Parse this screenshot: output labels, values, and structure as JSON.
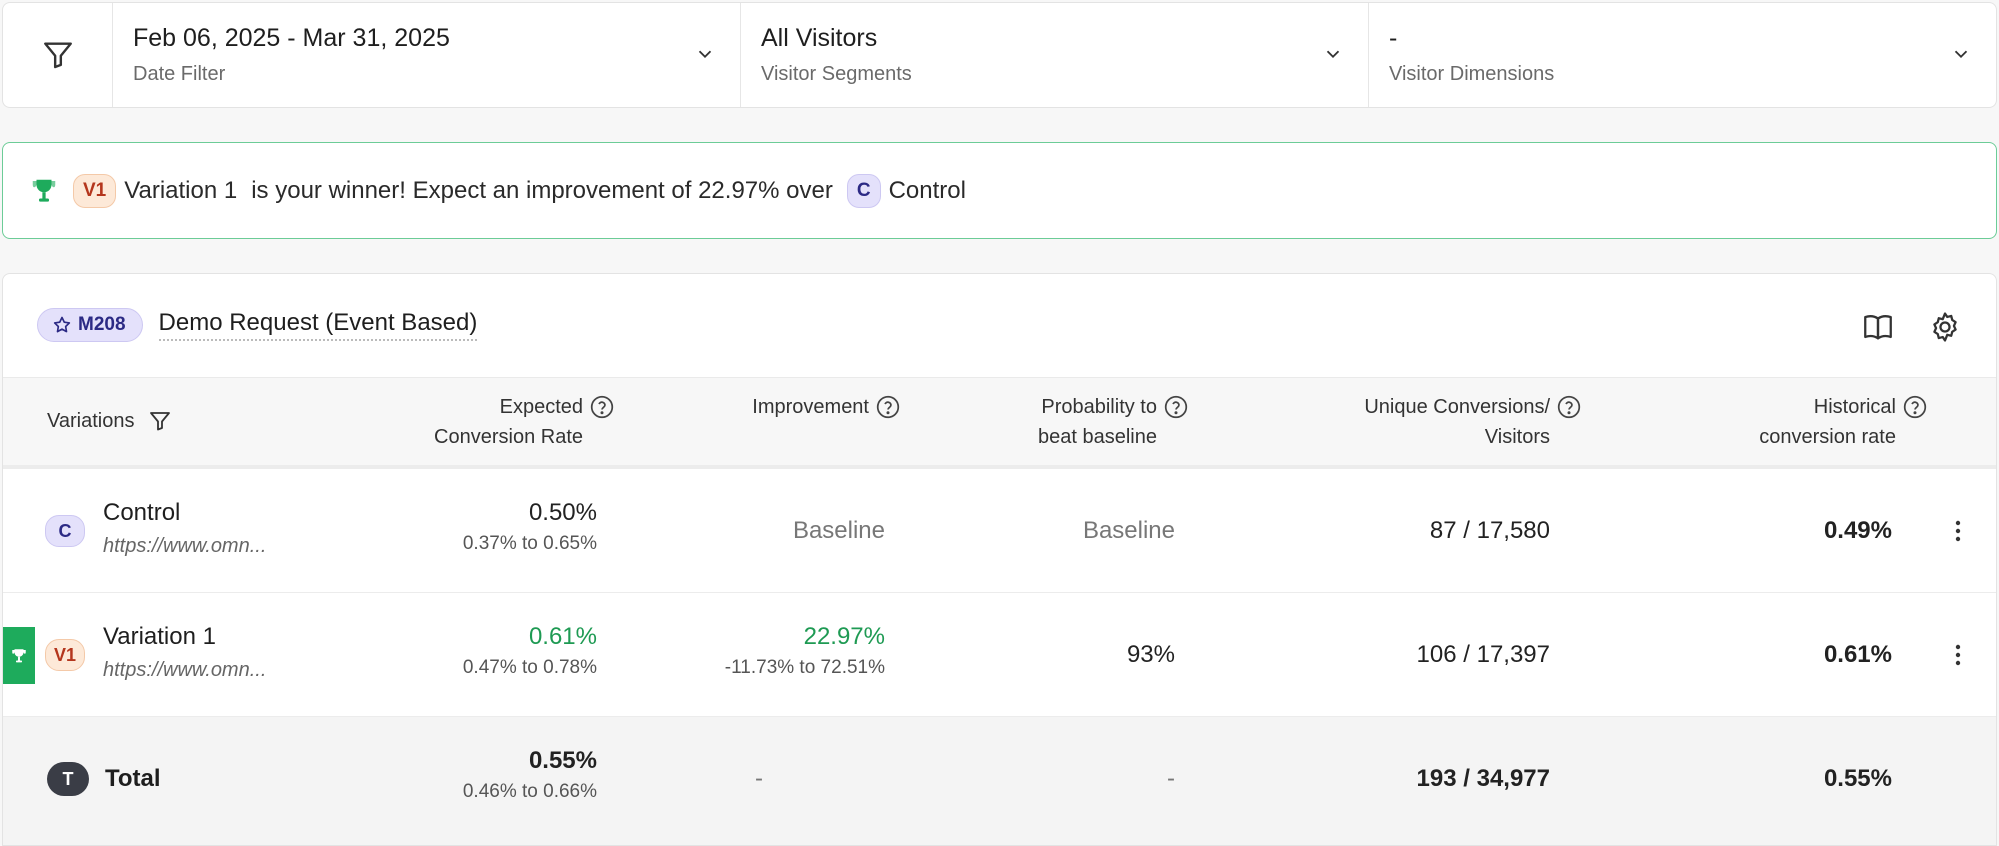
{
  "filters": [
    {
      "value": "Feb 06, 2025 - Mar 31, 2025",
      "label": "Date Filter"
    },
    {
      "value": "All Visitors",
      "label": "Visitor Segments"
    },
    {
      "value": "-",
      "label": "Visitor Dimensions"
    }
  ],
  "banner": {
    "winner_chip": "V1",
    "winner_name": "Variation 1",
    "message": "is your winner! Expect an improvement of 22.97% over",
    "control_chip": "C",
    "control_name": "Control"
  },
  "metric": {
    "id": "M208",
    "name": "Demo Request (Event Based)"
  },
  "columns": {
    "variations": "Variations",
    "expected_1": "Expected",
    "expected_2": "Conversion Rate",
    "improvement": "Improvement",
    "probability_1": "Probability to",
    "probability_2": "beat baseline",
    "unique_1": "Unique Conversions/",
    "unique_2": "Visitors",
    "historical_1": "Historical",
    "historical_2": "conversion rate"
  },
  "rows": [
    {
      "chip": "C",
      "name": "Control",
      "url": "https://www.omn...",
      "expected": "0.50%",
      "expected_range": "0.37% to 0.65%",
      "improvement": "Baseline",
      "improvement_range": "",
      "probability": "Baseline",
      "unique": "87 / 17,580",
      "historical": "0.49%"
    },
    {
      "chip": "V1",
      "name": "Variation 1",
      "url": "https://www.omn...",
      "expected": "0.61%",
      "expected_range": "0.47% to 0.78%",
      "improvement": "22.97%",
      "improvement_range": "-11.73% to 72.51%",
      "probability": "93%",
      "unique": "106 / 17,397",
      "historical": "0.61%"
    }
  ],
  "total": {
    "chip": "T",
    "name": "Total",
    "expected": "0.55%",
    "expected_range": "0.46% to 0.66%",
    "improvement": "-",
    "probability": "-",
    "unique": "193 / 34,977",
    "historical": "0.55%"
  },
  "colors": {
    "winner": "#1eab5c",
    "banner_border": "#6ccc97",
    "positive": "#1e9a53"
  }
}
